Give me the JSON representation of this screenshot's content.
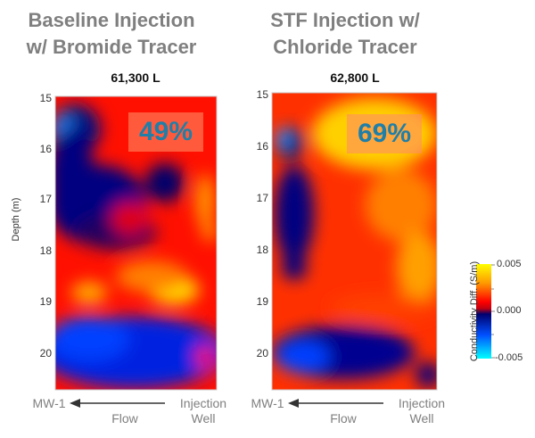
{
  "chart_data": [
    {
      "type": "heatmap",
      "title": "Baseline Injection w/ Bromide Tracer",
      "title_lines": [
        "Baseline Injection",
        "w/ Bromide Tracer"
      ],
      "subtitle": "61,300 L",
      "annotation": "49%",
      "ylabel": "Depth (m)",
      "yticks": [
        "15",
        "16",
        "17",
        "18",
        "19",
        "20"
      ],
      "ylim": [
        20.7,
        15
      ],
      "left_label": "MW-1",
      "right_label": [
        "Injection",
        "Well"
      ],
      "arrow_label": "Flow"
    },
    {
      "type": "heatmap",
      "title": "STF Injection w/ Chloride Tracer",
      "title_lines": [
        "STF Injection w/",
        "Chloride Tracer"
      ],
      "subtitle": "62,800 L",
      "annotation": "69%",
      "yticks": [
        "15",
        "16",
        "17",
        "18",
        "19",
        "20"
      ],
      "ylim": [
        20.7,
        15
      ],
      "left_label": "MW-1",
      "right_label": [
        "Injection",
        "Well"
      ],
      "arrow_label": "Flow"
    }
  ],
  "colorbar": {
    "label": "Conductivity Diff. (S/m)",
    "ticks": [
      "0.005",
      "0.000",
      "-0.005"
    ],
    "range": [
      -0.005,
      0.005
    ],
    "colors": [
      "#00ffff",
      "#0030ff",
      "#00006e",
      "#ff0000",
      "#ff9a00",
      "#ffff00"
    ]
  }
}
